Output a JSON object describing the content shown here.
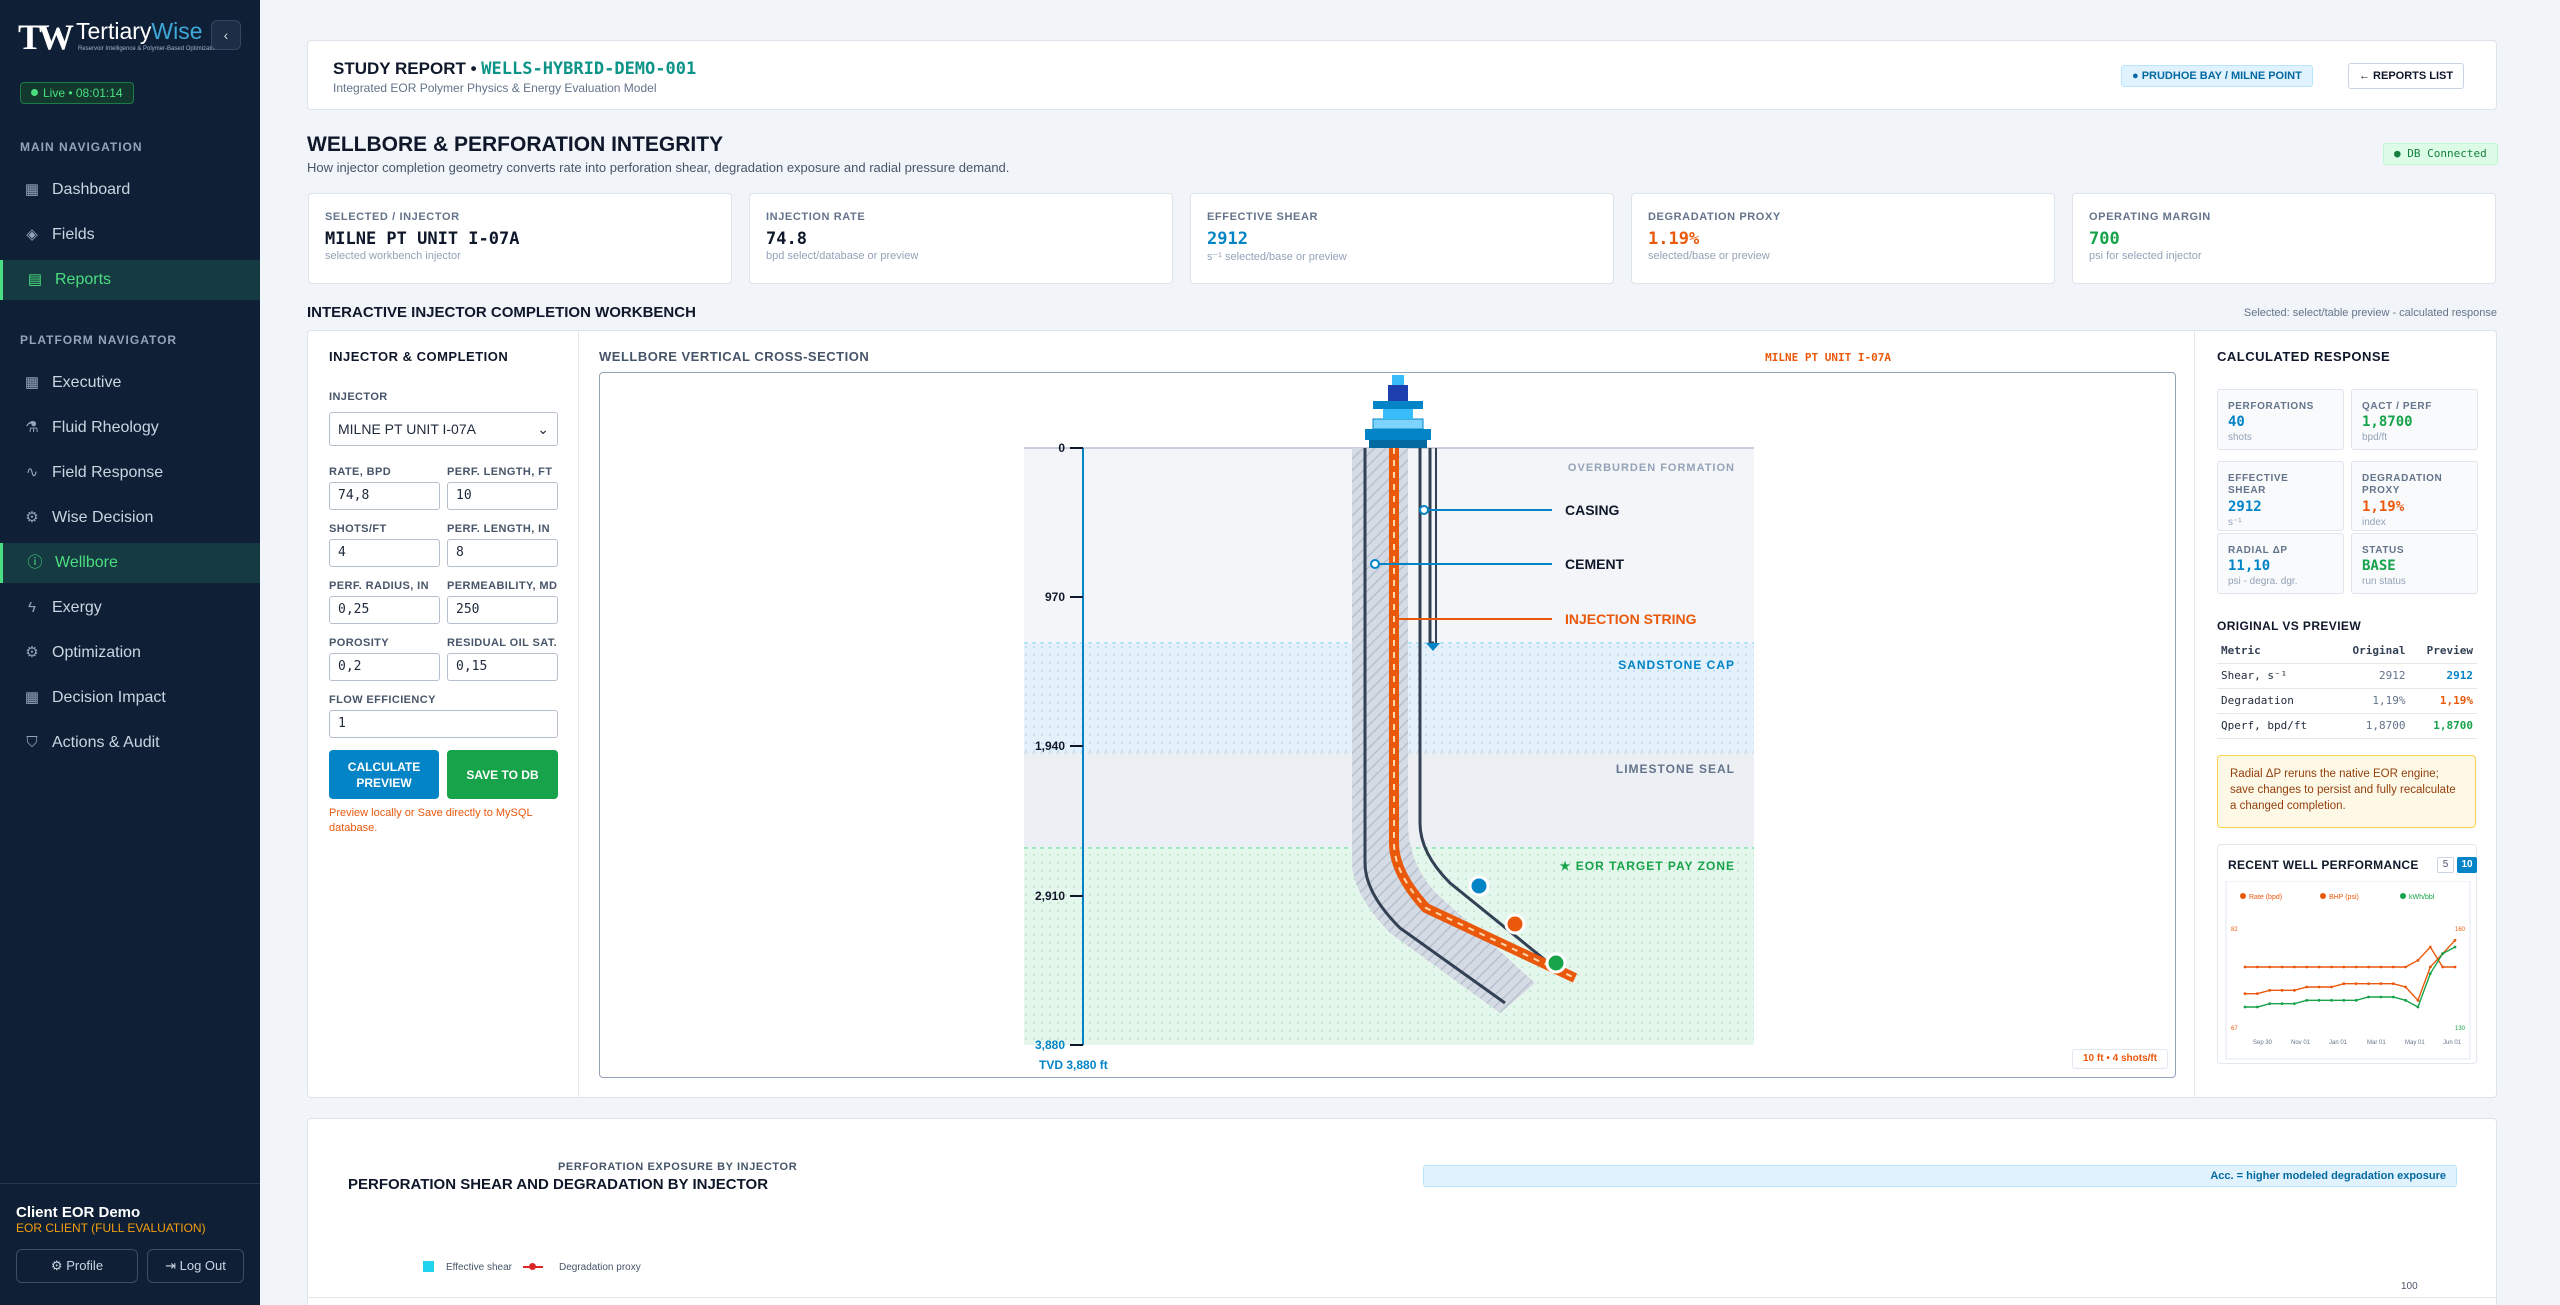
{
  "brand": {
    "tw": "TW",
    "name1": "Tertiary",
    "name2": "Wise",
    "tagline": "Reservoir Intelligence & Polymer-Based Optimization"
  },
  "live": "Live • 08:01:14",
  "nav": {
    "main_title": "MAIN NAVIGATION",
    "main": [
      {
        "label": "Dashboard",
        "icon": "grid-icon"
      },
      {
        "label": "Fields",
        "icon": "layers-icon"
      },
      {
        "label": "Reports",
        "icon": "document-icon"
      }
    ],
    "platform_title": "PLATFORM NAVIGATOR",
    "platform": [
      {
        "label": "Executive",
        "icon": "grid-icon"
      },
      {
        "label": "Fluid Rheology",
        "icon": "flask-icon"
      },
      {
        "label": "Field Response",
        "icon": "pulse-icon"
      },
      {
        "label": "Wise Decision",
        "icon": "gear-icon"
      },
      {
        "label": "Wellbore",
        "icon": "circle-alert-icon"
      },
      {
        "label": "Exergy",
        "icon": "bolt-icon"
      },
      {
        "label": "Optimization",
        "icon": "gear-icon"
      },
      {
        "label": "Decision Impact",
        "icon": "grid-icon"
      },
      {
        "label": "Actions & Audit",
        "icon": "shield-icon"
      }
    ]
  },
  "user": {
    "name": "Client EOR Demo",
    "role": "EOR CLIENT (FULL EVALUATION)",
    "profile": "Profile",
    "logout": "Log Out"
  },
  "header": {
    "study": "STUDY REPORT •",
    "id": "WELLS-HYBRID-DEMO-001",
    "subtitle": "Integrated EOR Polymer Physics & Energy Evaluation Model",
    "location": "PRUDHOE BAY / MILNE POINT",
    "reports_list": "← REPORTS LIST"
  },
  "section": {
    "title": "WELLBORE & PERFORATION INTEGRITY",
    "desc": "How injector completion geometry converts rate into perforation shear, degradation exposure and radial pressure demand.",
    "db": "DB Connected"
  },
  "kpis": [
    {
      "label": "SELECTED / INJECTOR",
      "value": "MILNE PT UNIT I-07A",
      "sub": "selected workbench injector",
      "color": "#0f172a"
    },
    {
      "label": "INJECTION RATE",
      "value": "74.8",
      "sub": "bpd select/database or preview",
      "color": "#0f172a"
    },
    {
      "label": "EFFECTIVE SHEAR",
      "value": "2912",
      "sub": "s⁻¹ selected/base or preview",
      "color": "#0284c7"
    },
    {
      "label": "DEGRADATION PROXY",
      "value": "1.19%",
      "sub": "selected/base or preview",
      "color": "#ea580c"
    },
    {
      "label": "OPERATING MARGIN",
      "value": "700",
      "sub": "psi for selected injector",
      "color": "#16a34a"
    }
  ],
  "workbench": {
    "title": "INTERACTIVE INJECTOR COMPLETION WORKBENCH",
    "note": "Selected: select/table preview - calculated response"
  },
  "form": {
    "title": "INJECTOR & COMPLETION",
    "injector_label": "INJECTOR",
    "injector": "MILNE PT UNIT I-07A",
    "fields": [
      {
        "label": "RATE, BPD",
        "value": "74,8"
      },
      {
        "label": "PERF. LENGTH, FT",
        "value": "10"
      },
      {
        "label": "SHOTS/FT",
        "value": "4"
      },
      {
        "label": "PERF. LENGTH, IN",
        "value": "8"
      },
      {
        "label": "PERF. RADIUS, IN",
        "value": "0,25"
      },
      {
        "label": "PERMEABILITY, MD",
        "value": "250"
      },
      {
        "label": "POROSITY",
        "value": "0,2"
      },
      {
        "label": "RESIDUAL OIL SAT.",
        "value": "0,15"
      },
      {
        "label": "FLOW EFFICIENCY",
        "value": "1"
      }
    ],
    "calc": "CALCULATE PREVIEW",
    "save": "SAVE TO DB",
    "hint": "Preview locally or Save directly to MySQL database."
  },
  "xsec": {
    "title": "WELLBORE VERTICAL CROSS-SECTION",
    "well": "MILNE PT UNIT I-07A",
    "depths": [
      "0",
      "970",
      "1,940",
      "2,910",
      "3,880"
    ],
    "tvd": "TVD 3,880 ft",
    "overburden": "OVERBURDEN FORMATION",
    "sandstone": "SANDSTONE CAP",
    "limestone": "LIMESTONE SEAL",
    "payzone": "★ EOR TARGET PAY ZONE",
    "casing": "CASING",
    "cement": "CEMENT",
    "string": "INJECTION STRING",
    "perf_tag": "10 ft • 4 shots/ft"
  },
  "response": {
    "title": "CALCULATED RESPONSE",
    "cards": [
      {
        "label": "PERFORATIONS",
        "value": "40",
        "sub": "shots",
        "color": "#0284c7"
      },
      {
        "label": "QACT / PERF",
        "value": "1,8700",
        "sub": "bpd/ft",
        "color": "#16a34a"
      },
      {
        "label": "EFFECTIVE SHEAR",
        "value": "2912",
        "sub": "s⁻¹",
        "color": "#0284c7"
      },
      {
        "label": "DEGRADATION PROXY",
        "value": "1,19%",
        "sub": "index",
        "color": "#ea580c"
      },
      {
        "label": "RADIAL ΔP",
        "value": "11,10",
        "sub": "psi - degra. dgr.",
        "color": "#0284c7"
      },
      {
        "label": "STATUS",
        "value": "BASE",
        "sub": "run status",
        "color": "#16a34a"
      }
    ],
    "cmp_title": "ORIGINAL VS PREVIEW",
    "cmp_head": [
      "Metric",
      "Original",
      "Preview"
    ],
    "cmp_rows": [
      {
        "metric": "Shear, s⁻¹",
        "orig": "2912",
        "prev": "2912",
        "color": "#0284c7"
      },
      {
        "metric": "Degradation",
        "orig": "1,19%",
        "prev": "1,19%",
        "color": "#ea580c"
      },
      {
        "metric": "Qperf, bpd/ft",
        "orig": "1,8700",
        "prev": "1,8700",
        "color": "#16a34a"
      }
    ],
    "note": "Radial ΔP reruns the native EOR engine; save changes to persist and fully recalculate a changed completion."
  },
  "recent": {
    "title": "RECENT WELL PERFORMANCE",
    "opt5": "5",
    "opt10": "10",
    "legend": [
      "Rate (bpd)",
      "BHP (psi)",
      "kWh/bbl"
    ],
    "y_left": [
      "82",
      "67"
    ],
    "y_right": [
      "160",
      "130"
    ],
    "x": [
      "Sep 30",
      "Nov 01",
      "Jan 01",
      "Mar 01",
      "May 01",
      "Jun 01"
    ]
  },
  "chart_data": {
    "type": "line",
    "title": "RECENT WELL PERFORMANCE",
    "series": [
      {
        "name": "Rate (bpd)",
        "values": [
          76,
          76,
          76,
          76,
          76,
          76,
          76,
          76,
          76,
          76,
          76,
          76,
          76,
          76,
          77,
          79,
          76,
          76
        ]
      },
      {
        "name": "BHP (psi)",
        "values": [
          72,
          72,
          72.5,
          72.5,
          72.5,
          73,
          73,
          73,
          73.5,
          73.5,
          73.5,
          73.5,
          73.5,
          73,
          71,
          76,
          78,
          80
        ]
      },
      {
        "name": "kWh/bbl",
        "values": [
          70,
          70,
          70.5,
          70.5,
          70.5,
          71,
          71,
          71,
          71,
          71,
          71.5,
          71.5,
          71.5,
          71,
          70,
          75,
          78,
          79
        ]
      }
    ],
    "ylim": [
      67,
      82
    ]
  },
  "bottom": {
    "eyebrow": "PERFORATION EXPOSURE BY INJECTOR",
    "title": "PERFORATION SHEAR AND DEGRADATION BY INJECTOR",
    "note": "Acc. = higher modeled degradation exposure",
    "legend_shear": "Effective shear",
    "legend_deg": "Degradation proxy",
    "axis_top": "100"
  }
}
